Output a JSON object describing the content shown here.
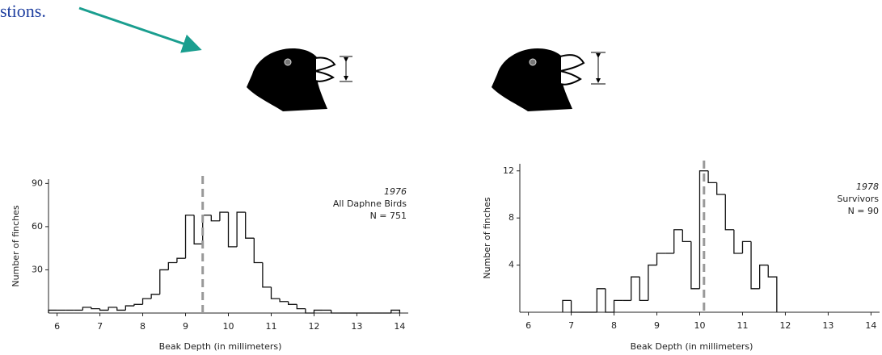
{
  "header_text": "stions.",
  "chart_data": [
    {
      "type": "histogram",
      "title": "1976",
      "subtitle": "All Daphne Birds",
      "annotation": "N = 751",
      "xlabel": "Beak Depth (in millimeters)",
      "ylabel": "Number of finches",
      "bins": [
        5.8,
        6.0,
        6.2,
        6.4,
        6.6,
        6.8,
        7.0,
        7.2,
        7.4,
        7.6,
        7.8,
        8.0,
        8.2,
        8.4,
        8.6,
        8.8,
        9.0,
        9.2,
        9.4,
        9.6,
        9.8,
        10.0,
        10.2,
        10.4,
        10.6,
        10.8,
        11.0,
        11.2,
        11.4,
        11.6,
        11.8,
        12.0,
        12.2,
        12.4,
        12.6,
        12.8,
        13.0,
        13.2,
        13.4,
        13.6,
        13.8,
        14.0
      ],
      "values": [
        2,
        2,
        2,
        2,
        4,
        3,
        2,
        4,
        2,
        5,
        6,
        10,
        13,
        30,
        35,
        38,
        68,
        48,
        68,
        64,
        70,
        46,
        70,
        52,
        35,
        18,
        10,
        8,
        6,
        3,
        0,
        2,
        2,
        0,
        0,
        0,
        0,
        0,
        0,
        0,
        2
      ],
      "reference_line": 9.4,
      "color": "#111111",
      "reference_color": "#999999",
      "xlim": [
        5.8,
        14.2
      ],
      "xticks": [
        6,
        7,
        8,
        9,
        10,
        11,
        12,
        13,
        14
      ],
      "ylim": [
        0,
        93
      ],
      "yticks": [
        30,
        60,
        90
      ]
    },
    {
      "type": "histogram",
      "title": "1978",
      "subtitle": "Survivors",
      "annotation": "N = 90",
      "xlabel": "Beak Depth (in millimeters)",
      "ylabel": "Number of finches",
      "bins": [
        6.8,
        7.0,
        7.2,
        7.4,
        7.6,
        7.8,
        8.0,
        8.2,
        8.4,
        8.6,
        8.8,
        9.0,
        9.2,
        9.4,
        9.6,
        9.8,
        10.0,
        10.2,
        10.4,
        10.6,
        10.8,
        11.0,
        11.2,
        11.4,
        11.6,
        11.8
      ],
      "values": [
        1,
        0,
        0,
        0,
        2,
        0,
        1,
        1,
        3,
        1,
        4,
        5,
        5,
        7,
        6,
        2,
        12,
        11,
        10,
        7,
        5,
        6,
        2,
        4,
        3
      ],
      "reference_line": 10.1,
      "color": "#111111",
      "reference_color": "#999999",
      "xlim": [
        5.8,
        14.2
      ],
      "xticks": [
        6,
        7,
        8,
        9,
        10,
        11,
        12,
        13,
        14
      ],
      "ylim": [
        0,
        12.6
      ],
      "yticks": [
        4,
        8,
        12
      ]
    }
  ]
}
